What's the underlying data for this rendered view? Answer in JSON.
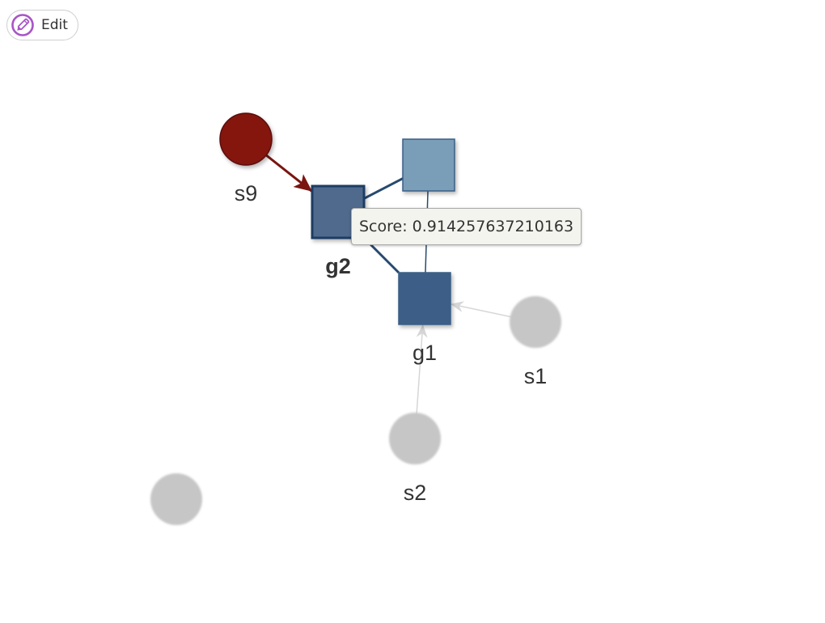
{
  "toolbar": {
    "edit_label": "Edit",
    "edit_icon": "pencil-icon",
    "accent_color": "#a855c7"
  },
  "tooltip": {
    "text": "Score: 0.914257637210163"
  },
  "graph": {
    "nodes": [
      {
        "id": "s9",
        "label": "s9",
        "shape": "circle",
        "color": "#84160f",
        "state": "selected"
      },
      {
        "id": "g2",
        "label": "g2",
        "shape": "square",
        "color": "#4f6a8c",
        "state": "hovered"
      },
      {
        "id": "g3",
        "label": "",
        "shape": "square",
        "color": "#7a9db8",
        "state": "active"
      },
      {
        "id": "g1",
        "label": "g1",
        "shape": "square",
        "color": "#3d5f87",
        "state": "active"
      },
      {
        "id": "s1",
        "label": "s1",
        "shape": "circle",
        "color": "#c6c6c6",
        "state": "faded"
      },
      {
        "id": "s2",
        "label": "s2",
        "shape": "circle",
        "color": "#c6c6c6",
        "state": "faded"
      },
      {
        "id": "s3",
        "label": "",
        "shape": "circle",
        "color": "#c6c6c6",
        "state": "faded"
      }
    ],
    "edges": [
      {
        "from": "s9",
        "to": "g2",
        "directed": true,
        "color": "#7a1510"
      },
      {
        "from": "g2",
        "to": "g3",
        "directed": false,
        "color": "#264a70"
      },
      {
        "from": "g2",
        "to": "g1",
        "directed": false,
        "color": "#264a70"
      },
      {
        "from": "g3",
        "to": "g1",
        "directed": false,
        "color": "#264a70"
      },
      {
        "from": "s1",
        "to": "g1",
        "directed": true,
        "color": "#d6d6d6"
      },
      {
        "from": "s2",
        "to": "g1",
        "directed": true,
        "color": "#d6d6d6"
      }
    ]
  }
}
